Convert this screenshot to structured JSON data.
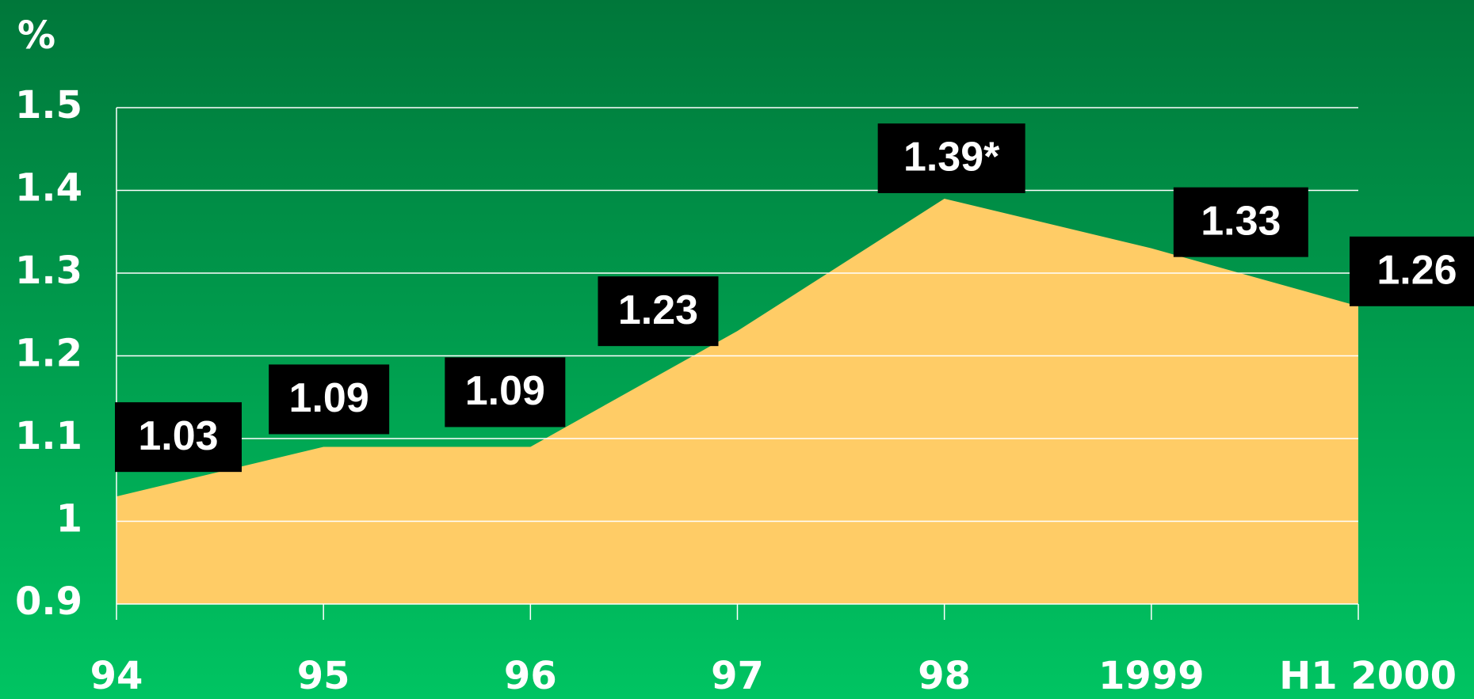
{
  "chart_data": {
    "type": "area",
    "y_axis_label": "%",
    "categories": [
      "94",
      "95",
      "96",
      "97",
      "98",
      "1999",
      "H1 2000"
    ],
    "values": [
      1.03,
      1.09,
      1.09,
      1.23,
      1.39,
      1.33,
      1.26
    ],
    "value_labels": [
      "1.03",
      "1.09",
      "1.09",
      "1.23",
      "1.39*",
      "1.33",
      "1.26"
    ],
    "color": "#ffcc66",
    "ylim": [
      0.9,
      1.5
    ],
    "yticks": [
      0.9,
      1,
      1.1,
      1.2,
      1.3,
      1.4,
      1.5
    ],
    "grid": true
  }
}
